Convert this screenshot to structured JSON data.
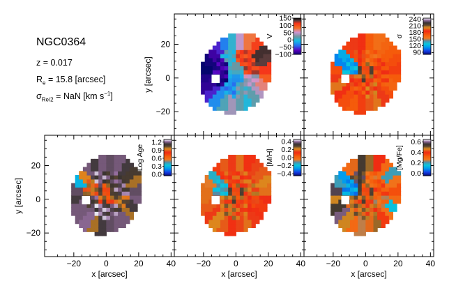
{
  "info": {
    "galaxy": "NGC0364",
    "redshift": "z = 0.017",
    "re_main": "R",
    "re_sub": "e",
    "re_rest": " = 15.8 [arcsec]",
    "sigma_main": "σ",
    "sigma_sub": "Re/2",
    "sigma_rest": " = NaN [km s",
    "sigma_exp": "−1",
    "sigma_end": "]"
  },
  "axes": {
    "xlabel": "x [arcsec]",
    "ylabel": "y [arcsec]",
    "xlim": [
      -38,
      42
    ],
    "ylim": [
      -34,
      38
    ],
    "x_ticks": [
      -20,
      0,
      20,
      40
    ],
    "y_ticks": [
      -20,
      0,
      20
    ],
    "x_tick_labels": [
      "−20",
      "0",
      "20",
      "40"
    ],
    "y_tick_labels": [
      "−20",
      "0",
      "20"
    ]
  },
  "chart_data": [
    {
      "type": "heatmap",
      "id": "velocity",
      "label": "V",
      "range": [
        -100,
        150
      ],
      "cmap": "velocity",
      "tick_values": [
        150,
        100,
        50,
        0,
        -50,
        -100
      ],
      "tick_labels": [
        "150",
        "100",
        "50",
        "0",
        "−50",
        "−100"
      ],
      "wedges": [
        -90,
        -85,
        -60,
        -25,
        15,
        40,
        20,
        0,
        20,
        45,
        70,
        95,
        115,
        135,
        140,
        110,
        80,
        50,
        5,
        -30,
        -60,
        -80,
        -95,
        -100
      ]
    },
    {
      "type": "heatmap",
      "id": "sigma",
      "label": "σ",
      "range": [
        80,
        245
      ],
      "cmap": "sauron",
      "tick_values": [
        90,
        120,
        150,
        180,
        210,
        240
      ],
      "tick_labels": [
        "90",
        "120",
        "150",
        "180",
        "210",
        "240"
      ],
      "wedges": [
        190,
        200,
        185,
        175,
        170,
        180,
        195,
        200,
        190,
        175,
        165,
        170,
        180,
        175,
        170,
        165,
        160,
        170,
        185,
        190,
        180,
        120,
        110,
        175
      ]
    },
    {
      "type": "heatmap",
      "id": "age",
      "label": "Log Age",
      "range": [
        -0.05,
        1.3
      ],
      "cmap": "sauron",
      "tick_values": [
        0.0,
        0.3,
        0.6,
        0.9,
        1.2
      ],
      "tick_labels": [
        "0.0",
        "0.3",
        "0.6",
        "0.9",
        "1.2"
      ],
      "wedges": [
        1.15,
        1.2,
        1.2,
        1.22,
        1.0,
        1.15,
        1.18,
        1.2,
        1.2,
        1.0,
        1.15,
        1.2,
        1.18,
        1.0,
        1.1,
        1.15,
        1.2,
        1.18,
        1.2,
        1.15,
        1.2,
        0.95,
        0.3,
        1.18
      ]
    },
    {
      "type": "heatmap",
      "id": "metallicity",
      "label": "[M/H]",
      "range": [
        -0.45,
        0.45
      ],
      "cmap": "sauron",
      "tick_values": [
        -0.4,
        -0.2,
        0.0,
        0.2,
        0.4
      ],
      "tick_labels": [
        "−0.4",
        "−0.2",
        "0.0",
        "0.2",
        "0.4"
      ],
      "wedges": [
        0.2,
        0.18,
        0.15,
        0.22,
        0.18,
        0.12,
        0.16,
        0.2,
        0.15,
        0.12,
        0.1,
        0.14,
        0.2,
        0.22,
        0.18,
        0.16,
        0.12,
        0.2,
        0.15,
        0.18,
        0.1,
        -0.15,
        -0.05,
        0.2
      ]
    },
    {
      "type": "heatmap",
      "id": "mgfe",
      "label": "[Mg/Fe]",
      "range": [
        -0.05,
        0.65
      ],
      "cmap": "sauron",
      "tick_values": [
        0.0,
        0.2,
        0.4,
        0.6
      ],
      "tick_labels": [
        "0.0",
        "0.2",
        "0.4",
        "0.6"
      ],
      "wedges": [
        0.48,
        0.55,
        0.6,
        0.48,
        0.3,
        0.25,
        0.45,
        0.5,
        0.38,
        0.28,
        0.15,
        0.3,
        0.35,
        0.28,
        0.2,
        0.3,
        0.4,
        0.5,
        0.55,
        0.45,
        0.3,
        0.1,
        0.2,
        0.58
      ]
    }
  ]
}
